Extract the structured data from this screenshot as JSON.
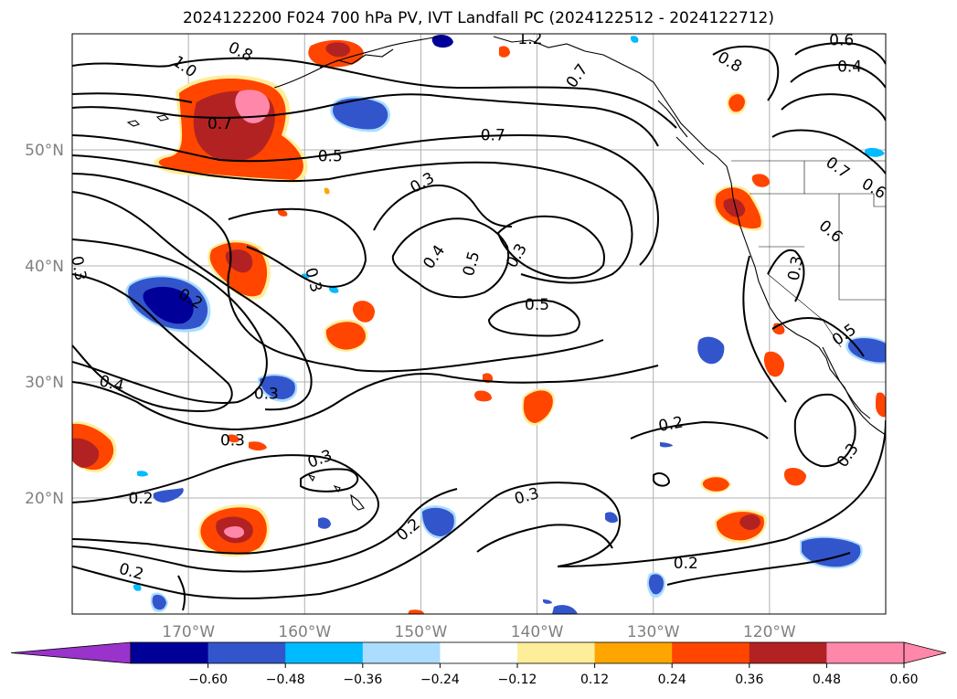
{
  "title": "2024122200 F024 700 hPa PV, IVT Landfall PC (2024122512 - 2024122712)",
  "map": {
    "projection": "lat-lon",
    "lon_range": [
      -180,
      -110
    ],
    "lat_range": [
      10,
      60
    ],
    "gridlines": true,
    "lat_ticks": [
      "50°N",
      "40°N",
      "30°N",
      "20°N"
    ],
    "lon_ticks": [
      "170°W",
      "160°W",
      "150°W",
      "140°W",
      "130°W",
      "120°W"
    ],
    "contour_labels": [
      {
        "text": "1.0",
        "lon": -170.3,
        "lat": 57.2,
        "rot": 35
      },
      {
        "text": "0.8",
        "lon": -165.5,
        "lat": 58.5,
        "rot": 25
      },
      {
        "text": "0.7",
        "lon": -167.3,
        "lat": 52.3,
        "rot": 0
      },
      {
        "text": "0.5",
        "lon": -157.8,
        "lat": 49.5,
        "rot": 0
      },
      {
        "text": "0.7",
        "lon": -143.8,
        "lat": 51.3,
        "rot": 0
      },
      {
        "text": "1.2",
        "lon": -140.6,
        "lat": 59.6,
        "rot": 0
      },
      {
        "text": "0.7",
        "lon": -136.6,
        "lat": 56.4,
        "rot": -55
      },
      {
        "text": "0.8",
        "lon": -123.4,
        "lat": 57.6,
        "rot": 30
      },
      {
        "text": "0.6",
        "lon": -113.8,
        "lat": 59.5,
        "rot": 0
      },
      {
        "text": "0.4",
        "lon": -113.1,
        "lat": 57.2,
        "rot": 0
      },
      {
        "text": "0.7",
        "lon": -114.1,
        "lat": 48.5,
        "rot": 35
      },
      {
        "text": "0.6",
        "lon": -111.0,
        "lat": 46.7,
        "rot": 30
      },
      {
        "text": "0.6",
        "lon": -114.7,
        "lat": 43.0,
        "rot": 40
      },
      {
        "text": "0.3",
        "lon": -149.9,
        "lat": 47.2,
        "rot": -30
      },
      {
        "text": "0.4",
        "lon": -148.9,
        "lat": 40.8,
        "rot": -55
      },
      {
        "text": "0.5",
        "lon": -145.7,
        "lat": 40.2,
        "rot": -75
      },
      {
        "text": "0.3",
        "lon": -141.8,
        "lat": 40.9,
        "rot": -60
      },
      {
        "text": "0.5",
        "lon": -140.0,
        "lat": 36.7,
        "rot": 0
      },
      {
        "text": "0.3",
        "lon": -179.4,
        "lat": 39.8,
        "rot": 80
      },
      {
        "text": "0.2",
        "lon": -169.8,
        "lat": 37.2,
        "rot": 30
      },
      {
        "text": "0.3",
        "lon": -159.2,
        "lat": 38.8,
        "rot": 75
      },
      {
        "text": "0.4",
        "lon": -176.6,
        "lat": 29.9,
        "rot": 15
      },
      {
        "text": "0.3",
        "lon": -163.3,
        "lat": 29.0,
        "rot": 0
      },
      {
        "text": "0.3",
        "lon": -166.2,
        "lat": 25.0,
        "rot": 0
      },
      {
        "text": "0.3",
        "lon": -158.7,
        "lat": 23.4,
        "rot": -20
      },
      {
        "text": "0.2",
        "lon": -174.1,
        "lat": 20.0,
        "rot": 0
      },
      {
        "text": "0.2",
        "lon": -174.9,
        "lat": 13.7,
        "rot": 15
      },
      {
        "text": "0.2",
        "lon": -151.1,
        "lat": 17.3,
        "rot": -40
      },
      {
        "text": "0.3",
        "lon": -140.9,
        "lat": 20.2,
        "rot": -15
      },
      {
        "text": "0.2",
        "lon": -128.5,
        "lat": 26.4,
        "rot": -10
      },
      {
        "text": "0.2",
        "lon": -127.2,
        "lat": 14.4,
        "rot": 0
      },
      {
        "text": "0.3",
        "lon": -117.8,
        "lat": 39.8,
        "rot": -80
      },
      {
        "text": "0.5",
        "lon": -113.6,
        "lat": 34.1,
        "rot": -35
      },
      {
        "text": "0.3",
        "lon": -113.3,
        "lat": 23.7,
        "rot": -55
      }
    ]
  },
  "colorbar": {
    "ticks": [
      "−0.60",
      "−0.48",
      "−0.36",
      "−0.24",
      "−0.12",
      "0.12",
      "0.24",
      "0.36",
      "0.48",
      "0.60"
    ],
    "colors": {
      "under": "#9933cc",
      "bins": [
        "#000099",
        "#3355cc",
        "#00bbff",
        "#aaddff",
        "#ffffff",
        "#ffee99",
        "#ffa500",
        "#ff4500",
        "#b22222",
        "#ff88aa"
      ],
      "over": "#ff88aa"
    }
  }
}
